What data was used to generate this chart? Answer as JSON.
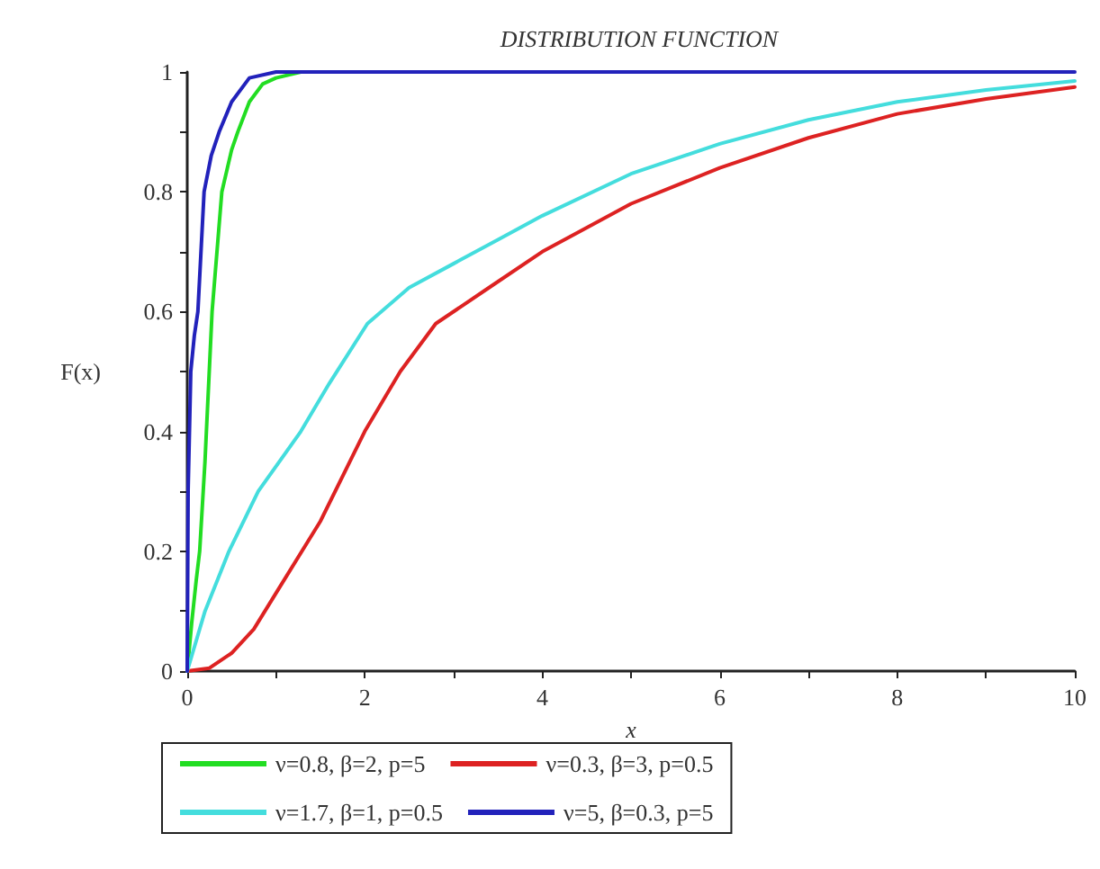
{
  "chart_data": {
    "type": "line",
    "title": "DISTRIBUTION FUNCTION",
    "xlabel": "x",
    "ylabel": "F(x)",
    "xlim": [
      0,
      10
    ],
    "ylim": [
      0,
      1
    ],
    "xticks": [
      0,
      {
        "value": 1,
        "label": null
      },
      2,
      {
        "value": 3,
        "label": null
      },
      4,
      {
        "value": 5,
        "label": null
      },
      6,
      {
        "value": 7,
        "label": null
      },
      8,
      {
        "value": 9,
        "label": null
      },
      10
    ],
    "yticks": [
      0,
      {
        "value": 0.1,
        "label": null
      },
      0.2,
      {
        "value": 0.3,
        "label": null
      },
      0.4,
      {
        "value": 0.5,
        "label": null
      },
      0.6,
      {
        "value": 0.7,
        "label": null
      },
      0.8,
      {
        "value": 0.9,
        "label": null
      },
      1
    ],
    "grid": false,
    "legend": "bottom",
    "marker": "none",
    "line_style": "solid",
    "series": [
      {
        "name": "ν=0.8, β=2, p=5",
        "color": "#22dd22",
        "x": [
          0,
          0.05,
          0.1,
          0.14,
          0.2,
          0.28,
          0.39,
          0.5,
          0.57,
          0.7,
          0.85,
          1,
          1.28
        ],
        "values": [
          0,
          0.08,
          0.15,
          0.2,
          0.35,
          0.6,
          0.8,
          0.87,
          0.9,
          0.95,
          0.98,
          0.99,
          1
        ]
      },
      {
        "name": "ν=0.3, β=3, p=0.5",
        "color": "#dd2222",
        "x": [
          0,
          0.25,
          0.5,
          0.75,
          1,
          1.5,
          2,
          2.4,
          2.8,
          3.4,
          4,
          5,
          6,
          7,
          8,
          9,
          10
        ],
        "values": [
          0,
          0.005,
          0.03,
          0.07,
          0.13,
          0.25,
          0.4,
          0.5,
          0.58,
          0.64,
          0.7,
          0.78,
          0.84,
          0.89,
          0.93,
          0.955,
          0.975
        ]
      },
      {
        "name": "ν=1.7, β=1, p=0.5",
        "color": "#44dddd",
        "x": [
          0,
          0.2,
          0.47,
          0.8,
          1.28,
          1.6,
          2.03,
          2.5,
          3,
          3.5,
          4,
          5,
          6,
          7,
          8,
          9,
          10
        ],
        "values": [
          0,
          0.1,
          0.2,
          0.3,
          0.4,
          0.48,
          0.58,
          0.64,
          0.68,
          0.72,
          0.76,
          0.83,
          0.88,
          0.92,
          0.95,
          0.97,
          0.985
        ]
      },
      {
        "name": "ν=5, β=0.3, p=5",
        "color": "#2222bb",
        "x": [
          0,
          0.01,
          0.04,
          0.08,
          0.12,
          0.19,
          0.27,
          0.36,
          0.5,
          0.7,
          1,
          2,
          4,
          6,
          8,
          10
        ],
        "values": [
          0,
          0.3,
          0.5,
          0.56,
          0.6,
          0.8,
          0.86,
          0.9,
          0.95,
          0.99,
          1,
          1,
          1,
          1,
          1,
          1
        ]
      }
    ]
  }
}
